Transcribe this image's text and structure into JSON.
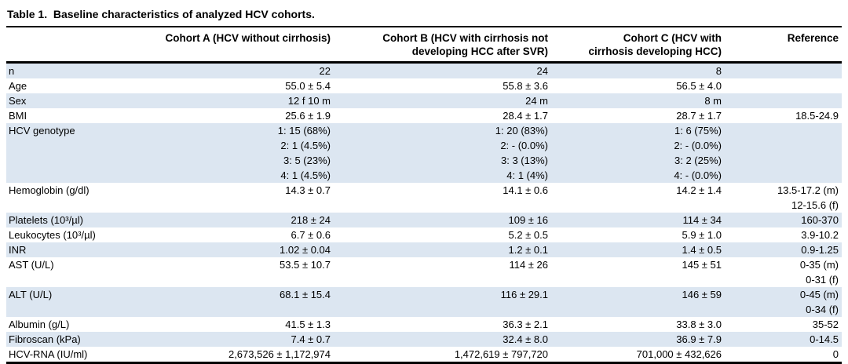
{
  "title": "Table 1.  Baseline characteristics of analyzed HCV cohorts.",
  "colors": {
    "stripe": "#dce6f1",
    "rule": "#000000",
    "text": "#000000",
    "background": "#ffffff"
  },
  "table": {
    "columns": {
      "label": "",
      "a": "Cohort A (HCV without cirrhosis)",
      "b": "Cohort B (HCV with cirrhosis not\ndeveloping HCC after SVR)",
      "c": "Cohort C (HCV with\ncirrhosis developing HCC)",
      "ref": "Reference"
    },
    "rows": [
      {
        "label": "n",
        "a": "22",
        "b": "24",
        "c": "8",
        "ref": ""
      },
      {
        "label": "Age",
        "a": "55.0 ± 5.4",
        "b": "55.8 ± 3.6",
        "c": "56.5 ± 4.0",
        "ref": ""
      },
      {
        "label": "Sex",
        "a": "12 f 10 m",
        "b": "24 m",
        "c": "8 m",
        "ref": ""
      },
      {
        "label": "BMI",
        "a": "25.6 ± 1.9",
        "b": "28.4 ± 1.7",
        "c": "28.7 ± 1.7",
        "ref": "18.5-24.9"
      },
      {
        "label": "HCV genotype",
        "a": "1: 15 (68%)\n2: 1 (4.5%)\n3: 5 (23%)\n4: 1 (4.5%)",
        "b": "1: 20 (83%)\n2: - (0.0%)\n3: 3 (13%)\n4: 1 (4%)",
        "c": "1: 6 (75%)\n2: - (0.0%)\n3: 2 (25%)\n4: - (0.0%)",
        "ref": ""
      },
      {
        "label": "Hemoglobin (g/dl)",
        "a": "14.3 ± 0.7",
        "b": "14.1 ± 0.6",
        "c": "14.2 ± 1.4",
        "ref": "13.5-17.2 (m)\n12-15.6 (f)"
      },
      {
        "label": "Platelets (10³/µl)",
        "a": "218 ± 24",
        "b": "109 ± 16",
        "c": "114 ± 34",
        "ref": "160-370"
      },
      {
        "label": "Leukocytes (10³/µl)",
        "a": "6.7 ± 0.6",
        "b": "5.2 ± 0.5",
        "c": "5.9 ± 1.0",
        "ref": "3.9-10.2"
      },
      {
        "label": "INR",
        "a": "1.02 ± 0.04",
        "b": "1.2 ± 0.1",
        "c": "1.4 ± 0.5",
        "ref": "0.9-1.25"
      },
      {
        "label": "AST (U/L)",
        "a": "53.5 ± 10.7",
        "b": "114 ± 26",
        "c": "145 ± 51",
        "ref": "0-35 (m)\n0-31 (f)"
      },
      {
        "label": "ALT (U/L)",
        "a": "68.1 ± 15.4",
        "b": "116 ± 29.1",
        "c": "146 ± 59",
        "ref": "0-45 (m)\n0-34 (f)"
      },
      {
        "label": "Albumin (g/L)",
        "a": "41.5 ± 1.3",
        "b": "36.3 ± 2.1",
        "c": "33.8 ± 3.0",
        "ref": "35-52"
      },
      {
        "label": "Fibroscan (kPa)",
        "a": "7.4 ± 0.7",
        "b": "32.4 ± 8.0",
        "c": "36.9 ± 7.9",
        "ref": "0-14.5"
      },
      {
        "label": "HCV-RNA (IU/ml)",
        "a": "2,673,526 ± 1,172,974",
        "b": "1,472,619 ± 797,720",
        "c": "701,000 ± 432,626",
        "ref": "0"
      }
    ]
  }
}
